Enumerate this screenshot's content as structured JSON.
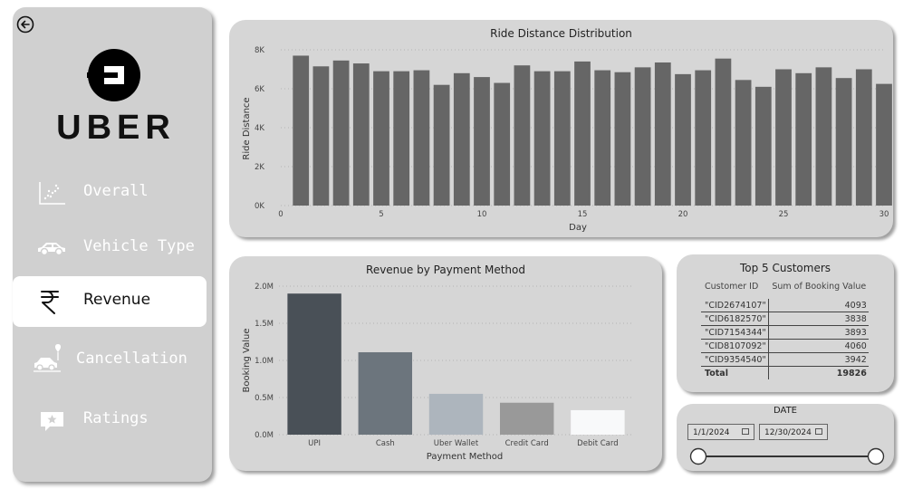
{
  "sidebar": {
    "logo_text": "UBER",
    "nav": [
      {
        "label": "Overall",
        "icon": "scatter-chart-icon"
      },
      {
        "label": "Vehicle Type",
        "icon": "car-icon"
      },
      {
        "label": "Revenue",
        "icon": "rupee-icon"
      },
      {
        "label": "Cancellation",
        "icon": "cancelled-car-icon"
      },
      {
        "label": "Ratings",
        "icon": "star-rating-icon"
      }
    ]
  },
  "ride_chart": {
    "title": "Ride Distance Distribution",
    "xlabel": "Day",
    "ylabel": "Ride Distance",
    "yticks": [
      "0K",
      "2K",
      "4K",
      "6K",
      "8K"
    ],
    "xticks": [
      "0",
      "5",
      "10",
      "15",
      "20",
      "25",
      "30"
    ]
  },
  "revenue_chart": {
    "title": "Revenue by Payment Method",
    "xlabel": "Payment Method",
    "ylabel": "Booking Value",
    "yticks": [
      "0.0M",
      "0.5M",
      "1.0M",
      "1.5M",
      "2.0M"
    ]
  },
  "top_customers": {
    "title": "Top 5 Customers",
    "col1": "Customer ID",
    "col2": "Sum of Booking Value",
    "rows": [
      {
        "id": "\"CID2674107\"",
        "value": "4093"
      },
      {
        "id": "\"CID6182570\"",
        "value": "3838"
      },
      {
        "id": "\"CID7154344\"",
        "value": "3893"
      },
      {
        "id": "\"CID8107092\"",
        "value": "4060"
      },
      {
        "id": "\"CID9354540\"",
        "value": "3942"
      }
    ],
    "total_label": "Total",
    "total_value": "19826"
  },
  "date_filter": {
    "title": "DATE",
    "start": "1/1/2024",
    "end": "12/30/2024"
  },
  "chart_data": [
    {
      "type": "bar",
      "title": "Ride Distance Distribution",
      "xlabel": "Day",
      "ylabel": "Ride Distance",
      "x": [
        1,
        2,
        3,
        4,
        5,
        6,
        7,
        8,
        9,
        10,
        11,
        12,
        13,
        14,
        15,
        16,
        17,
        18,
        19,
        20,
        21,
        22,
        23,
        24,
        25,
        26,
        27,
        28,
        29,
        30
      ],
      "values": [
        7700,
        7150,
        7450,
        7300,
        6900,
        6900,
        6950,
        6200,
        6800,
        6600,
        6300,
        7200,
        6900,
        6900,
        7400,
        6950,
        6850,
        7100,
        7350,
        6750,
        6950,
        7550,
        6450,
        6100,
        7000,
        6800,
        7100,
        6550,
        7000,
        6250
      ],
      "ylim": [
        0,
        8000
      ],
      "xlim": [
        0,
        30
      ],
      "grid": true
    },
    {
      "type": "bar",
      "title": "Revenue by Payment Method",
      "xlabel": "Payment Method",
      "ylabel": "Booking Value",
      "categories": [
        "UPI",
        "Cash",
        "Uber Wallet",
        "Credit Card",
        "Debit Card"
      ],
      "values": [
        1900000,
        1110000,
        550000,
        430000,
        330000
      ],
      "colors": [
        "#495057",
        "#6c757d",
        "#adb5bd",
        "#999999",
        "#f8f9fa"
      ],
      "ylim": [
        0,
        2000000
      ],
      "grid": true
    }
  ]
}
